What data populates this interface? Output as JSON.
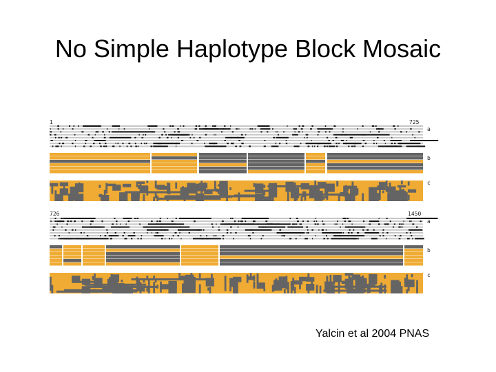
{
  "slide": {
    "title": "No Simple Haplotype Block Mosaic",
    "citation": "Yalcin et al 2004 PNAS"
  },
  "figure": {
    "colors": {
      "orange": "#efab33",
      "gray": "#646464",
      "track": "#c6c6c6",
      "mark": "#111111"
    },
    "panels": [
      {
        "start_label": "1",
        "end_label": "725",
        "rows": [
          {
            "label": "a",
            "kind": "snp-lines"
          },
          {
            "label": "b",
            "kind": "blocks"
          },
          {
            "label": "c",
            "kind": "mosaic"
          }
        ]
      },
      {
        "start_label": "726",
        "end_label": "1450",
        "rows": [
          {
            "label": "a",
            "kind": "snp-lines"
          },
          {
            "label": "b",
            "kind": "blocks"
          },
          {
            "label": "c",
            "kind": "mosaic"
          }
        ]
      }
    ]
  }
}
